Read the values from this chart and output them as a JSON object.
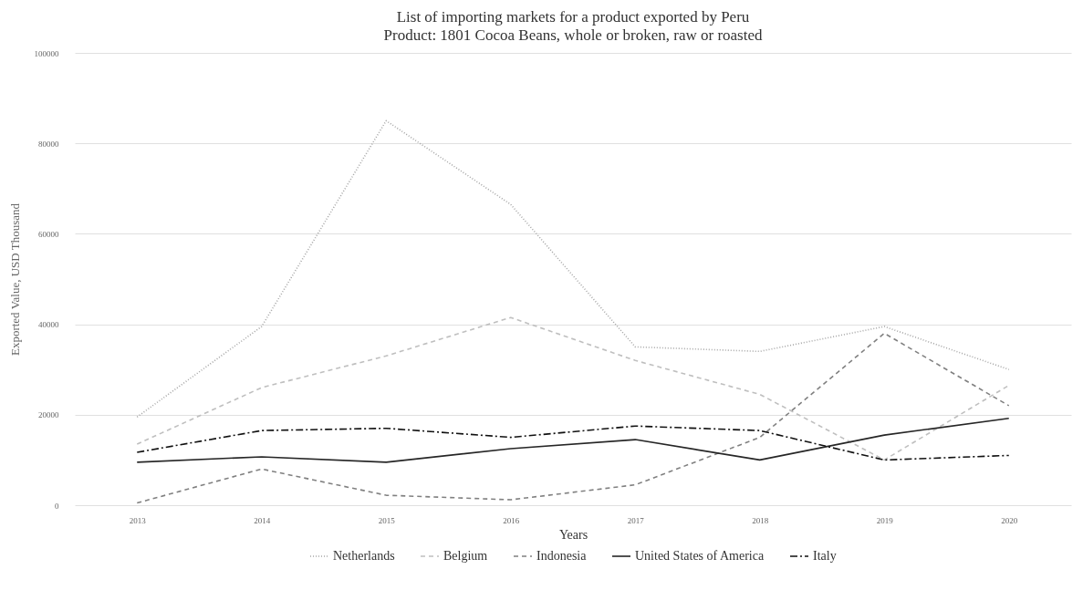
{
  "chart_data": {
    "type": "line",
    "title": "List of importing markets for a product exported by Peru",
    "subtitle": "Product: 1801 Cocoa Beans, whole or broken, raw or roasted",
    "xlabel": "Years",
    "ylabel": "Exported Value, USD Thousand",
    "categories": [
      "2013",
      "2014",
      "2015",
      "2016",
      "2017",
      "2018",
      "2019",
      "2020"
    ],
    "series": [
      {
        "name": "Netherlands",
        "color": "#a6a6a6",
        "line_style": "dotted",
        "values": [
          19500,
          39500,
          85000,
          66500,
          35000,
          34000,
          39500,
          30000
        ]
      },
      {
        "name": "Belgium",
        "color": "#bfbfbf",
        "line_style": "dashed",
        "values": [
          13500,
          26000,
          33000,
          41500,
          32000,
          24500,
          10000,
          26500
        ]
      },
      {
        "name": "Indonesia",
        "color": "#808080",
        "line_style": "dashed",
        "values": [
          500,
          8000,
          2200,
          1200,
          4500,
          15000,
          38000,
          22000
        ]
      },
      {
        "name": "United States of America",
        "color": "#262626",
        "line_style": "solid",
        "values": [
          9500,
          10700,
          9500,
          12500,
          14500,
          10000,
          15500,
          19200
        ]
      },
      {
        "name": "Italy",
        "color": "#111111",
        "line_style": "dashdot",
        "values": [
          11700,
          16500,
          17000,
          15000,
          17500,
          16500,
          10000,
          11000
        ]
      }
    ],
    "ylim": [
      0,
      100000
    ],
    "yticks": [
      0,
      20000,
      40000,
      60000,
      80000,
      100000
    ],
    "grid": "y",
    "legend": "bottom",
    "marker": "none"
  }
}
